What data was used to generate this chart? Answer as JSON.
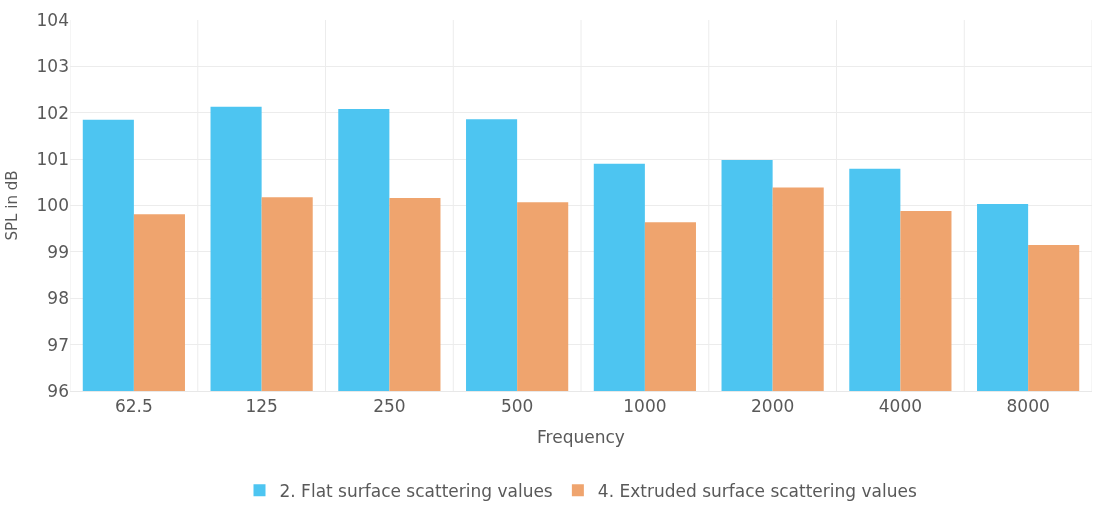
{
  "chart_data": {
    "type": "bar",
    "xlabel": "Frequency",
    "ylabel": "SPL in dB",
    "categories": [
      "62.5",
      "125",
      "250",
      "500",
      "1000",
      "2000",
      "4000",
      "8000"
    ],
    "series": [
      {
        "name": "2. Flat surface scattering values",
        "color": "#4dc5f1",
        "values": [
          101.85,
          102.13,
          102.08,
          101.86,
          100.9,
          100.98,
          100.79,
          100.03
        ]
      },
      {
        "name": "4. Extruded surface scattering values",
        "color": "#efa46e",
        "values": [
          99.81,
          100.18,
          100.16,
          100.07,
          99.64,
          100.39,
          99.88,
          99.15
        ]
      }
    ],
    "ylim": [
      96,
      104
    ],
    "yticks": [
      96,
      97,
      98,
      99,
      100,
      101,
      102,
      103,
      104
    ],
    "grid": true,
    "legend": "bottom"
  }
}
